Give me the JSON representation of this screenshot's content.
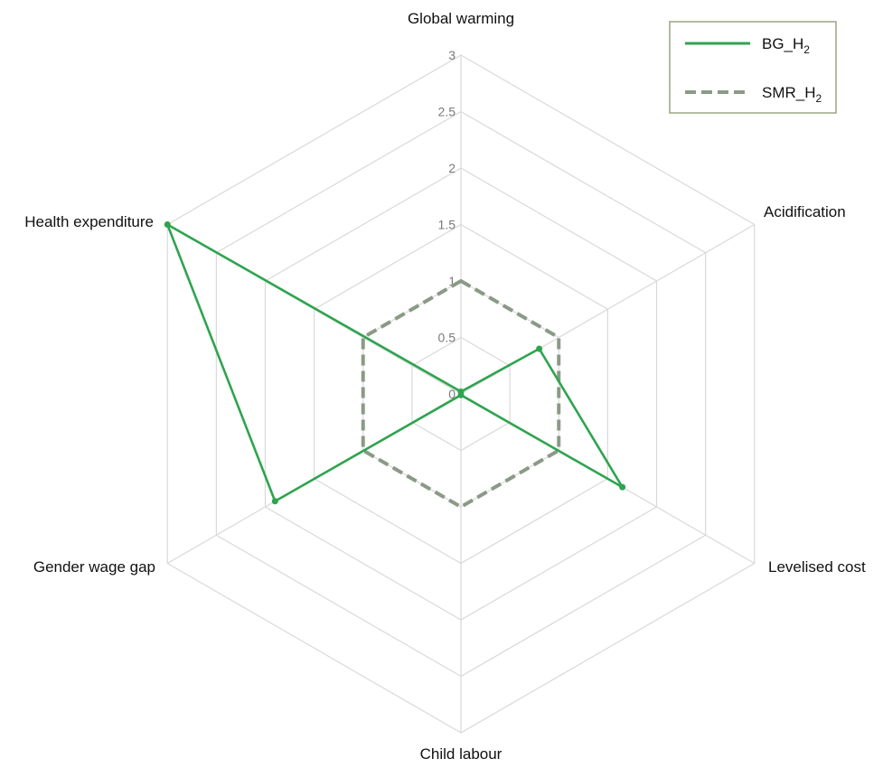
{
  "chart_data": {
    "type": "radar",
    "axes": [
      "Global warming",
      "Acidification",
      "Levelised cost",
      "Child labour",
      "Gender wage gap",
      "Health expenditure"
    ],
    "rlim": [
      0,
      3
    ],
    "ticks": [
      "0",
      "0.5",
      "1",
      "1.5",
      "2",
      "2.5",
      "3"
    ],
    "grid": true,
    "legend_position": "top-right",
    "series": [
      {
        "name": "BG_H2",
        "name_main": "BG_H",
        "name_sub": "2",
        "values": [
          0.02,
          0.8,
          1.65,
          0.01,
          1.9,
          3.0
        ],
        "color": "#2ea44f",
        "style": "solid"
      },
      {
        "name": "SMR_H2",
        "name_main": "SMR_H",
        "name_sub": "2",
        "values": [
          1,
          1,
          1,
          1,
          1,
          1
        ],
        "color": "#8a9a86",
        "style": "dashed"
      }
    ]
  }
}
